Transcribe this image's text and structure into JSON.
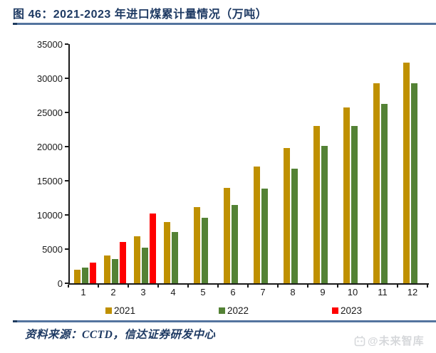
{
  "header": {
    "title": "图 46：2021-2023 年进口煤累计量情况（万吨）"
  },
  "colors": {
    "title_navy": "#1e3a63",
    "rule_blue": "#54749e",
    "rule_tip_navy": "#1f3b5e",
    "axis_black": "#1a1a1a",
    "watermark_gray": "#d6d8db",
    "series_2021": "#bf9000",
    "series_2022": "#548235",
    "series_2023": "#ff0000"
  },
  "chart_data": {
    "type": "bar",
    "title": "2021-2023 年进口煤累计量情况（万吨）",
    "xlabel": "",
    "ylabel": "",
    "ylim": [
      0,
      35000
    ],
    "ytick_step": 5000,
    "yticks": [
      0,
      5000,
      10000,
      15000,
      20000,
      25000,
      30000,
      35000
    ],
    "grid": false,
    "legend_position": "bottom",
    "categories": [
      "1",
      "2",
      "3",
      "4",
      "5",
      "6",
      "7",
      "8",
      "9",
      "10",
      "11",
      "12"
    ],
    "series": [
      {
        "name": "2021",
        "color": "#bf9000",
        "values": [
          2000,
          4100,
          6850,
          9000,
          11100,
          13950,
          17050,
          19770,
          23040,
          25730,
          29230,
          32320
        ]
      },
      {
        "name": "2022",
        "color": "#548235",
        "values": [
          2300,
          3550,
          5200,
          7550,
          9600,
          11500,
          13850,
          16800,
          20090,
          23000,
          26220,
          29320
        ]
      },
      {
        "name": "2023",
        "color": "#ff0000",
        "values": [
          3000,
          6050,
          10180,
          null,
          null,
          null,
          null,
          null,
          null,
          null,
          null,
          null
        ]
      }
    ]
  },
  "footer": {
    "source": "资料来源：CCTD，信达证券研发中心",
    "watermark": "@未来智库"
  }
}
